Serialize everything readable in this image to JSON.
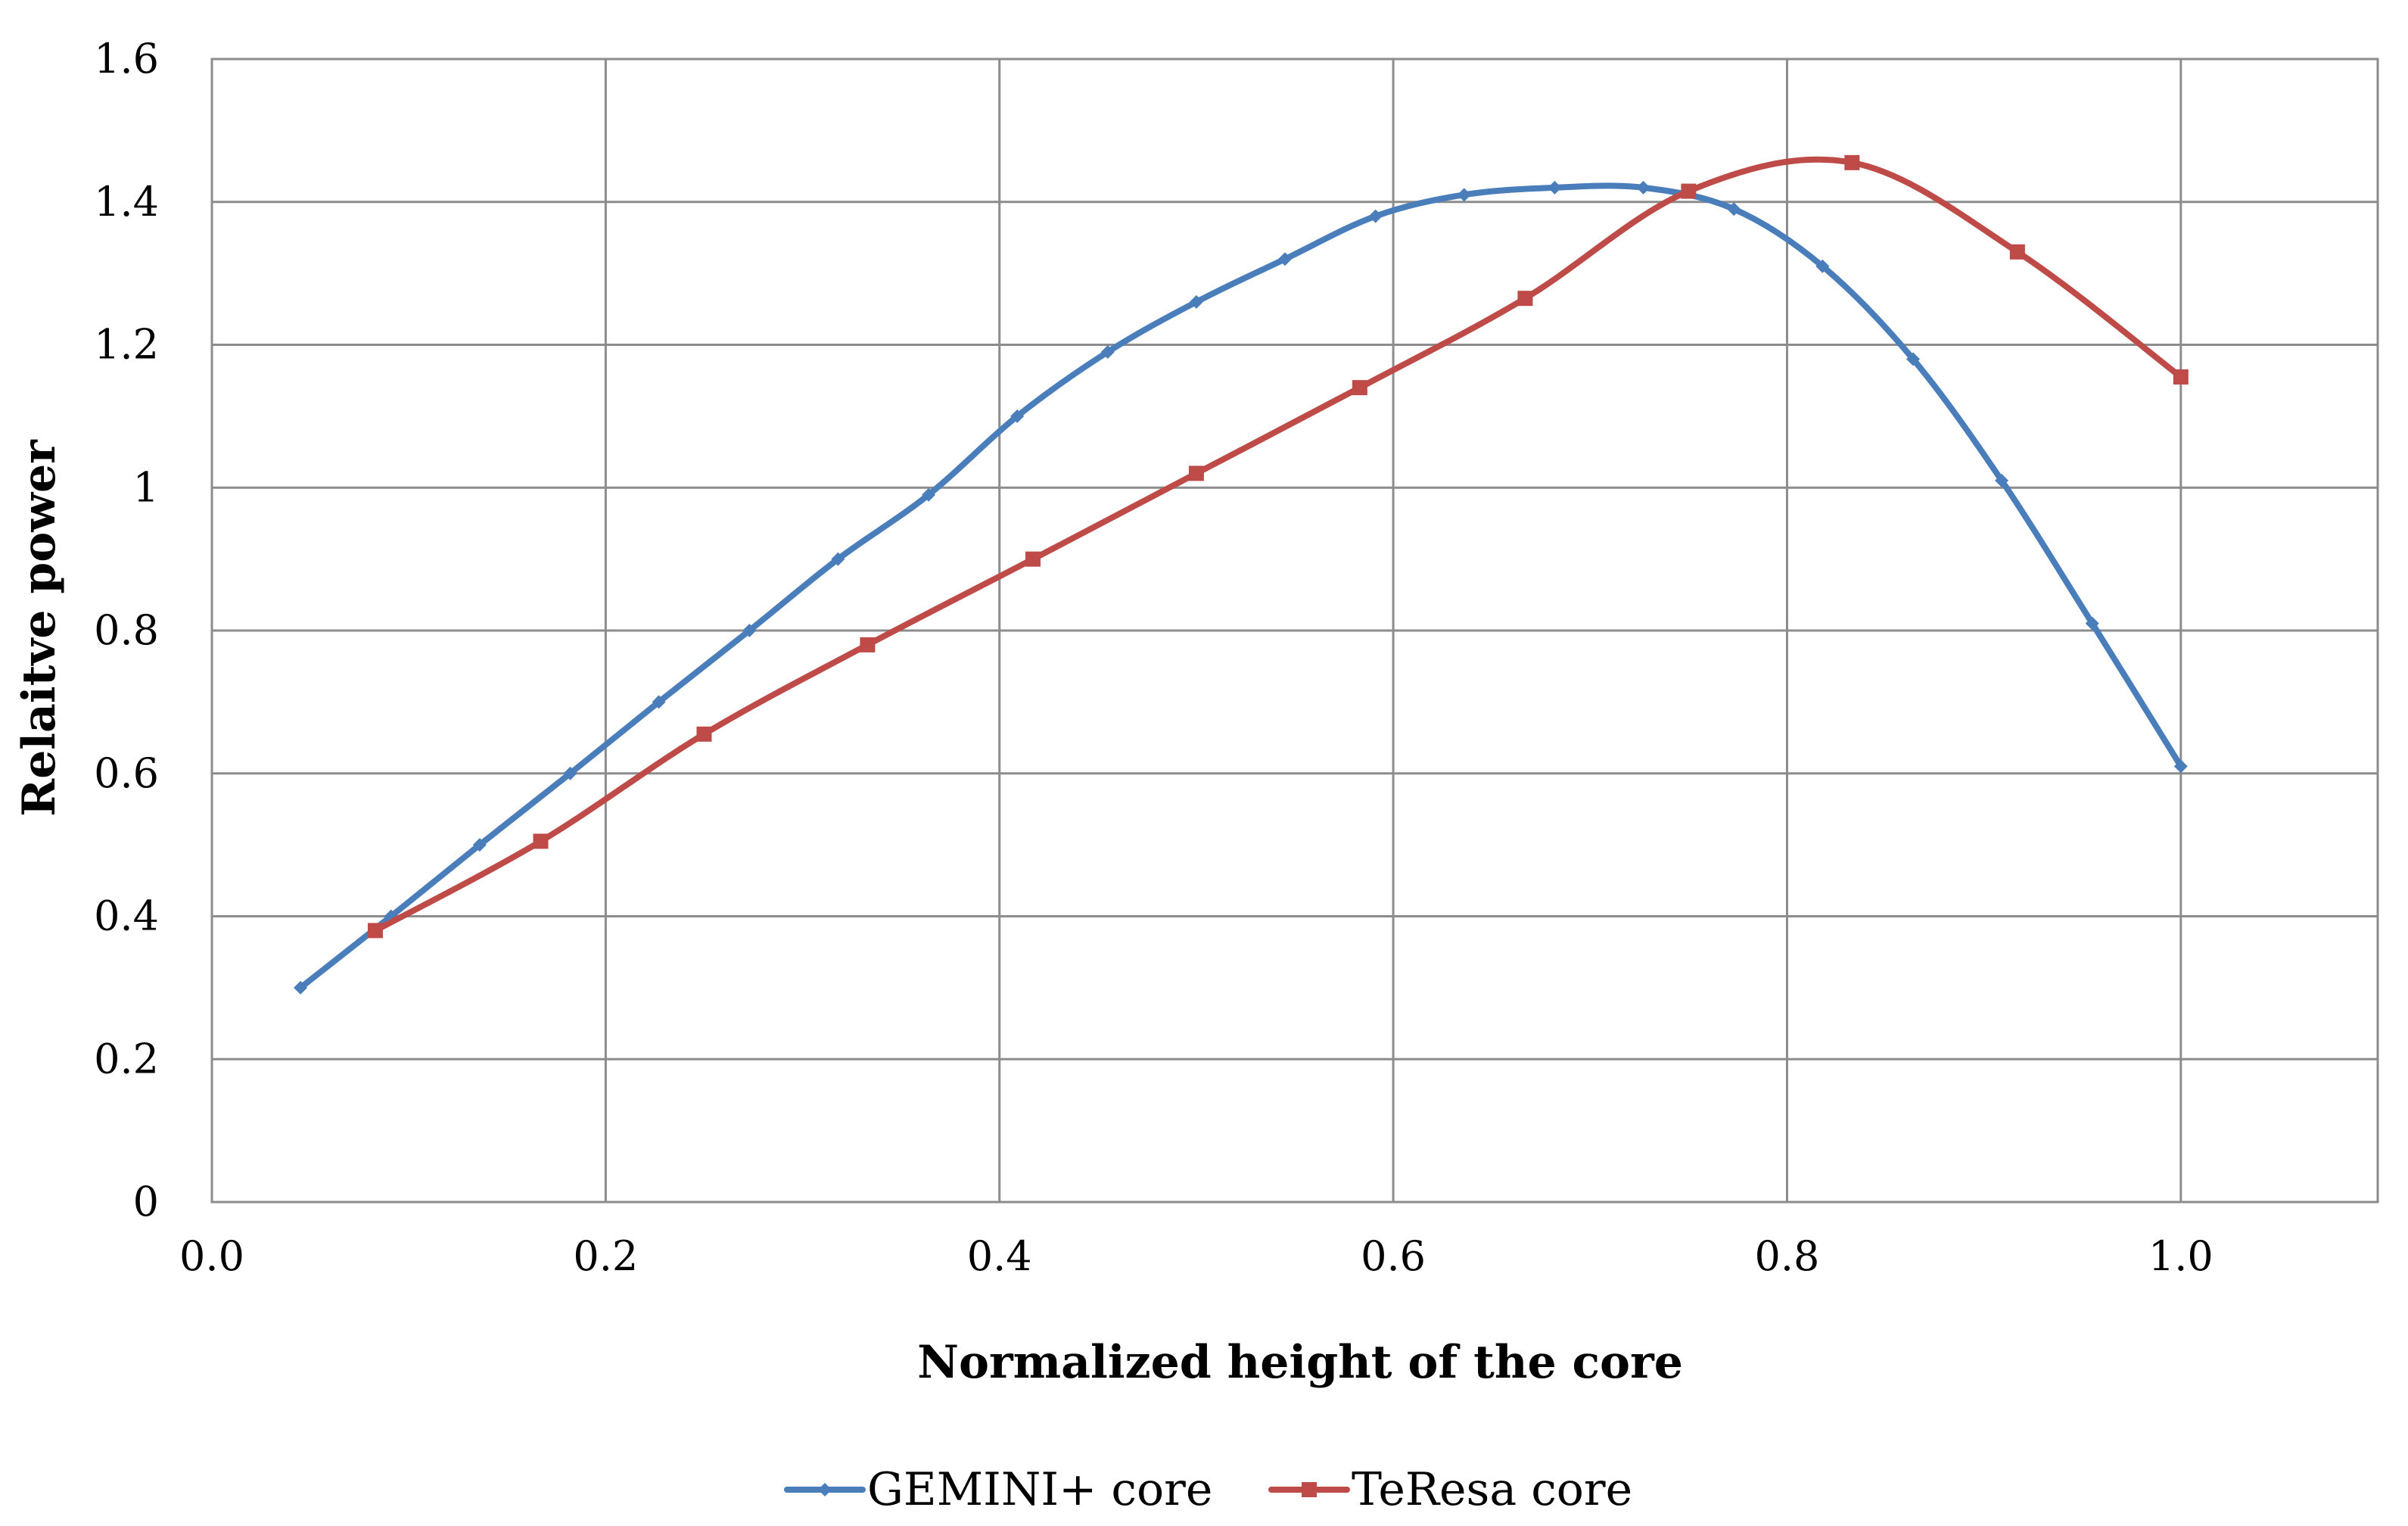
{
  "chart_data": {
    "type": "line",
    "title": "",
    "xlabel": "Normalized height of the core",
    "ylabel": "Relaitve power",
    "xlim": [
      0.0,
      1.1
    ],
    "ylim": [
      0.0,
      1.6
    ],
    "x_ticks": [
      {
        "value": 0.0,
        "label": "0.0"
      },
      {
        "value": 0.2,
        "label": "0.2"
      },
      {
        "value": 0.4,
        "label": "0.4"
      },
      {
        "value": 0.6,
        "label": "0.6"
      },
      {
        "value": 0.8,
        "label": "0.8"
      },
      {
        "value": 1.0,
        "label": "1.0"
      }
    ],
    "y_ticks": [
      {
        "value": 0.0,
        "label": "0"
      },
      {
        "value": 0.2,
        "label": "0.2"
      },
      {
        "value": 0.4,
        "label": "0.4"
      },
      {
        "value": 0.6,
        "label": "0.6"
      },
      {
        "value": 0.8,
        "label": "0.8"
      },
      {
        "value": 1.0,
        "label": "1"
      },
      {
        "value": 1.2,
        "label": "1.2"
      },
      {
        "value": 1.4,
        "label": "1.4"
      },
      {
        "value": 1.6,
        "label": "1.6"
      }
    ],
    "grid": true,
    "legend_position": "bottom",
    "series": [
      {
        "name": "GEMINI+ core",
        "color": "#4a7ebb",
        "marker": "diamond",
        "x": [
          0.045,
          0.091,
          0.136,
          0.182,
          0.227,
          0.273,
          0.318,
          0.364,
          0.409,
          0.455,
          0.5,
          0.545,
          0.591,
          0.636,
          0.682,
          0.727,
          0.773,
          0.818,
          0.864,
          0.909,
          0.955,
          1.0
        ],
        "values": [
          0.3,
          0.4,
          0.5,
          0.6,
          0.7,
          0.8,
          0.9,
          0.99,
          1.1,
          1.19,
          1.26,
          1.32,
          1.38,
          1.41,
          1.42,
          1.42,
          1.39,
          1.31,
          1.18,
          1.01,
          0.81,
          0.61
        ]
      },
      {
        "name": "TeResa core",
        "color": "#be4b48",
        "marker": "square",
        "x": [
          0.083,
          0.167,
          0.25,
          0.333,
          0.417,
          0.5,
          0.583,
          0.667,
          0.75,
          0.833,
          0.917,
          1.0
        ],
        "values": [
          0.38,
          0.505,
          0.655,
          0.78,
          0.9,
          1.02,
          1.14,
          1.265,
          1.415,
          1.455,
          1.33,
          1.155
        ]
      }
    ]
  }
}
